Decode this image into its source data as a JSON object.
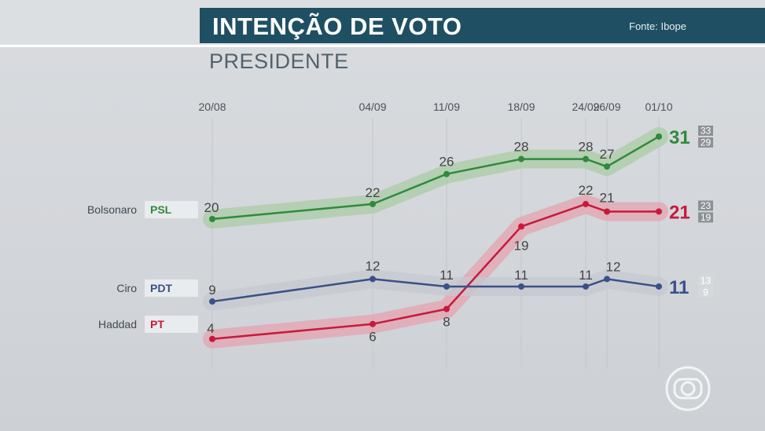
{
  "header": {
    "title": "INTENÇÃO DE VOTO",
    "source": "Fonte: Ibope",
    "subtitle": "PRESIDENTE"
  },
  "chart_data": {
    "type": "line",
    "categories": [
      "20/08",
      "04/09",
      "11/09",
      "18/09",
      "24/09",
      "26/09",
      "01/10"
    ],
    "ylim": [
      0,
      35
    ],
    "grid": "vertical",
    "series": [
      {
        "name": "Bolsonaro",
        "party": "PSL",
        "color": "#2f8a3c",
        "band": "#a9cca6",
        "values": [
          20,
          22,
          26,
          28,
          28,
          27,
          31
        ],
        "final": "31",
        "margin": [
          "33",
          "29"
        ]
      },
      {
        "name": "Haddad",
        "party": "PT",
        "color": "#c8193b",
        "band": "#e4a3b0",
        "values": [
          4,
          6,
          8,
          19,
          22,
          21,
          21
        ],
        "final": "21",
        "margin": [
          "23",
          "19"
        ]
      },
      {
        "name": "Ciro",
        "party": "PDT",
        "color": "#3a5088",
        "band": "#c4c9d0",
        "values": [
          9,
          12,
          11,
          11,
          11,
          12,
          11
        ],
        "final": "11",
        "margin": [
          "13",
          "9"
        ]
      }
    ]
  }
}
